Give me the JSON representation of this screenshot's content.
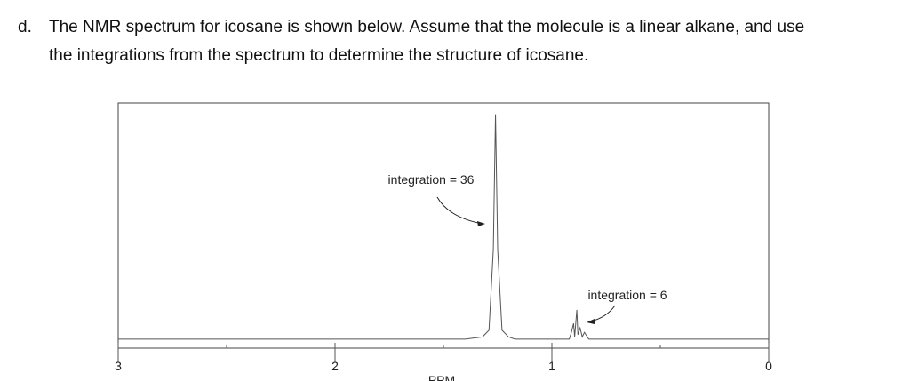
{
  "question": {
    "label": "d.",
    "lines": [
      "The NMR spectrum for icosane is shown below.  Assume that the molecule is a linear alkane, and use",
      "the integrations from the spectrum to determine the structure of icosane."
    ]
  },
  "chart_data": {
    "type": "line",
    "x": [
      3.0,
      1.4,
      1.32,
      1.29,
      1.27,
      1.26,
      1.25,
      1.23,
      1.2,
      1.17,
      0.92,
      0.91,
      0.9,
      0.895,
      0.885,
      0.88,
      0.87,
      0.86,
      0.85,
      0.83,
      0.0
    ],
    "values": [
      0,
      0,
      1,
      4,
      40,
      100,
      40,
      4,
      1,
      0,
      0,
      3,
      7,
      1,
      13,
      2,
      5,
      1,
      3,
      0,
      0
    ],
    "color": "#555555",
    "xlim": [
      3,
      0
    ],
    "xticks": [
      3,
      2,
      1,
      0
    ],
    "xminor": [
      2.5,
      1.5,
      0.5
    ],
    "ylim": [
      -4,
      105
    ],
    "xlabel": "PPM",
    "annotations": [
      "integration = 36",
      "integration = 6"
    ]
  }
}
